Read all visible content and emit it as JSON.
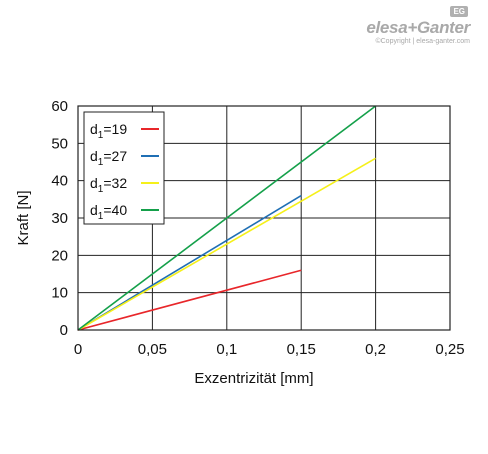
{
  "brand": {
    "name": "elesa+Ganter",
    "badge": "EG",
    "copyright": "©Copyright | elesa-ganter.com"
  },
  "chart_data": {
    "type": "line",
    "title": "",
    "xlabel": "Exzentrizität [mm]",
    "ylabel": "Kraft [N]",
    "xlim": [
      0,
      0.25
    ],
    "ylim": [
      0,
      60
    ],
    "x_ticks": [
      "0",
      "0,05",
      "0,1",
      "0,15",
      "0,2",
      "0,25"
    ],
    "y_ticks": [
      "0",
      "10",
      "20",
      "30",
      "40",
      "50",
      "60"
    ],
    "grid": true,
    "legend_position": "top-left",
    "series": [
      {
        "name": "d1=19",
        "name_base": "d",
        "name_sub": "1",
        "name_rest": "=19",
        "color": "#e8262a",
        "x": [
          0,
          0.15
        ],
        "y": [
          0,
          16
        ]
      },
      {
        "name": "d1=27",
        "name_base": "d",
        "name_sub": "1",
        "name_rest": "=27",
        "color": "#1f6fb4",
        "x": [
          0,
          0.15
        ],
        "y": [
          0,
          36
        ]
      },
      {
        "name": "d1=32",
        "name_base": "d",
        "name_sub": "1",
        "name_rest": "=32",
        "color": "#f5f01a",
        "x": [
          0,
          0.2
        ],
        "y": [
          0,
          46
        ]
      },
      {
        "name": "d1=40",
        "name_base": "d",
        "name_sub": "1",
        "name_rest": "=40",
        "color": "#14a04a",
        "x": [
          0,
          0.2
        ],
        "y": [
          0,
          60
        ]
      }
    ]
  }
}
